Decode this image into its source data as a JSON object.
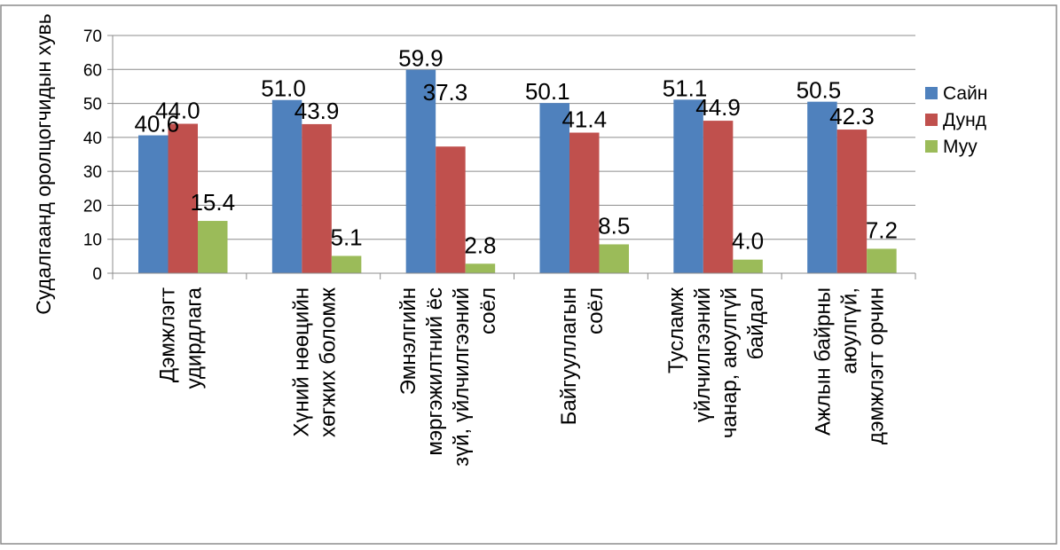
{
  "chart_data": {
    "type": "bar",
    "title": "",
    "xlabel": "",
    "ylabel": "Судалгаанд оролцогчидын хувь",
    "ylim": [
      0,
      70
    ],
    "yticks": [
      0,
      10,
      20,
      30,
      40,
      50,
      60,
      70
    ],
    "grid": true,
    "legend_position": "right",
    "categories": [
      [
        "Дэмжлэгт",
        "удирдлага"
      ],
      [
        "Хүний нөөцийн",
        "хөгжих боломж"
      ],
      [
        "Эмнэлгийн",
        "мэргэжилтний ёс",
        "зүй, үйлчилгээний",
        "соёл"
      ],
      [
        "Байгууллагын",
        "соёл"
      ],
      [
        "Тусламж",
        "үйлчилгээний",
        "чанар, аюулгүй",
        "байдал"
      ],
      [
        "Ажлын байрны",
        "аюулгүй,",
        "дэмжлэгт орчин"
      ]
    ],
    "series": [
      {
        "name": "Сайн",
        "color": "#4F81BD",
        "values": [
          40.6,
          51.0,
          59.9,
          50.1,
          51.1,
          50.5
        ]
      },
      {
        "name": "Дунд",
        "color": "#C0504D",
        "values": [
          44.0,
          43.9,
          37.3,
          41.4,
          44.9,
          42.3
        ]
      },
      {
        "name": "Муу",
        "color": "#9BBB59",
        "values": [
          15.4,
          5.1,
          2.8,
          8.5,
          4.0,
          7.2
        ]
      }
    ],
    "data_labels": [
      [
        "40.6",
        "51.0",
        "59.9",
        "50.1",
        "51.1",
        "50.5"
      ],
      [
        "44.0",
        "43.9",
        "37.3",
        "41.4",
        "44.9",
        "42.3"
      ],
      [
        "15.4",
        "5.1",
        "2.8",
        "8.5",
        "4.0",
        "7.2"
      ]
    ]
  }
}
